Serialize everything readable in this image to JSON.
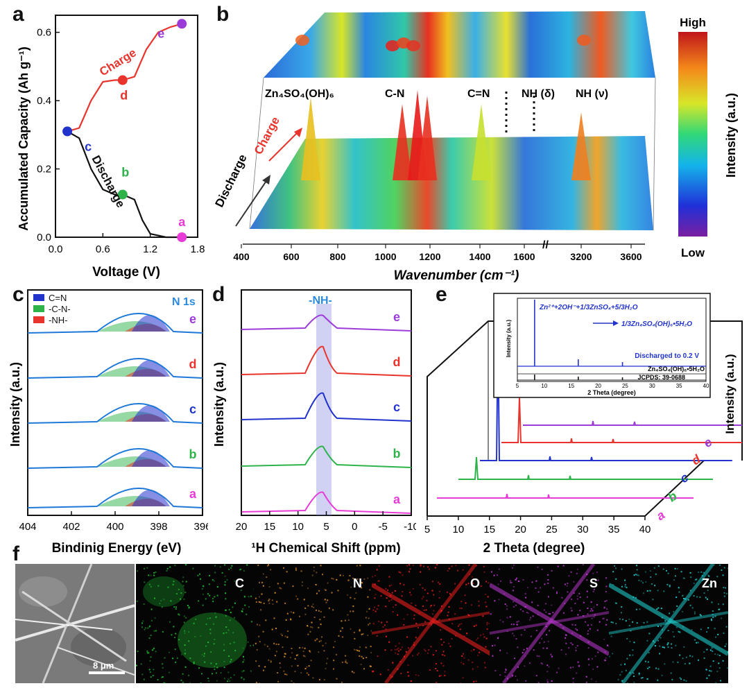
{
  "panels": {
    "a": "a",
    "b": "b",
    "c": "c",
    "d": "d",
    "e": "e",
    "f": "f"
  },
  "chart_data": [
    {
      "type": "line",
      "panel": "a",
      "xlabel": "Voltage (V)",
      "ylabel": "Accumulated Capacity (Ah g⁻¹)",
      "xlim": [
        0.0,
        1.8
      ],
      "ylim": [
        0.0,
        0.65
      ],
      "xticks": [
        "0.0",
        "0.6",
        "1.2",
        "1.8"
      ],
      "yticks": [
        "0.0",
        "0.2",
        "0.4",
        "0.6"
      ],
      "series": [
        {
          "name": "Charge",
          "color": "#e8342c",
          "x": [
            0.15,
            0.3,
            0.45,
            0.6,
            0.75,
            0.85,
            1.0,
            1.15,
            1.3,
            1.45,
            1.6
          ],
          "y": [
            0.31,
            0.32,
            0.4,
            0.455,
            0.46,
            0.46,
            0.47,
            0.55,
            0.6,
            0.615,
            0.625
          ]
        },
        {
          "name": "Discharge",
          "color": "#111111",
          "x": [
            0.15,
            0.3,
            0.45,
            0.6,
            0.75,
            0.85,
            1.0,
            1.1,
            1.2,
            1.4,
            1.6
          ],
          "y": [
            0.31,
            0.29,
            0.2,
            0.14,
            0.125,
            0.125,
            0.11,
            0.05,
            0.01,
            0.0,
            0.0
          ]
        }
      ],
      "points": [
        {
          "label": "a",
          "x": 1.6,
          "y": 0.0,
          "color": "#e83ad6"
        },
        {
          "label": "b",
          "x": 0.85,
          "y": 0.125,
          "color": "#2db34a"
        },
        {
          "label": "c",
          "x": 0.15,
          "y": 0.31,
          "color": "#2233cc"
        },
        {
          "label": "d",
          "x": 0.85,
          "y": 0.46,
          "color": "#e8342c"
        },
        {
          "label": "e",
          "x": 1.6,
          "y": 0.625,
          "color": "#9b3bd8"
        }
      ]
    },
    {
      "type": "heatmap",
      "panel": "b",
      "xlabel": "Wavenumber (cm⁻¹)",
      "xticks": [
        "400",
        "600",
        "800",
        "1000",
        "1200",
        "1400",
        "1600",
        "3200",
        "3600"
      ],
      "axis_labels": [
        "Discharge",
        "Charge"
      ],
      "peak_labels": [
        "Zn₄SO₄(OH)₆",
        "C-N",
        "C=N",
        "NH (δ)",
        "NH (ν)"
      ],
      "colorbar": {
        "title": "Intensity (a.u.)",
        "high": "High",
        "low": "Low"
      }
    },
    {
      "type": "line",
      "panel": "c",
      "xlabel": "Bindinig Energy (eV)",
      "ylabel": "Intensity (a.u.)",
      "xticks": [
        "404",
        "402",
        "400",
        "398",
        "396"
      ],
      "legend": [
        {
          "label": "C=N",
          "color": "#2233cc"
        },
        {
          "label": "-C-N-",
          "color": "#2db34a"
        },
        {
          "label": "-NH-",
          "color": "#e8342c"
        }
      ],
      "title_label": "N 1s",
      "curve_labels": [
        {
          "label": "e",
          "color": "#9b3bd8"
        },
        {
          "label": "d",
          "color": "#e8342c"
        },
        {
          "label": "c",
          "color": "#2233cc"
        },
        {
          "label": "b",
          "color": "#2db34a"
        },
        {
          "label": "a",
          "color": "#e83ad6"
        }
      ]
    },
    {
      "type": "line",
      "panel": "d",
      "xlabel": "¹H Chemical Shift (ppm)",
      "ylabel": "Intensity (a.u.)",
      "xticks": [
        "20",
        "15",
        "10",
        "5",
        "0",
        "-5",
        "-10"
      ],
      "band_label": "-NH-",
      "curve_labels": [
        {
          "label": "e",
          "color": "#9b3bd8"
        },
        {
          "label": "d",
          "color": "#e8342c"
        },
        {
          "label": "c",
          "color": "#2233cc"
        },
        {
          "label": "b",
          "color": "#2db34a"
        },
        {
          "label": "a",
          "color": "#e83ad6"
        }
      ]
    },
    {
      "type": "line",
      "panel": "e",
      "xlabel": "2 Theta (degree)",
      "ylabel": "Intensity (a.u.)",
      "xticks": [
        "5",
        "10",
        "15",
        "20",
        "25",
        "30",
        "35",
        "40"
      ],
      "curve_labels": [
        {
          "label": "a",
          "color": "#e83ad6"
        },
        {
          "label": "b",
          "color": "#2db34a"
        },
        {
          "label": "c",
          "color": "#2233cc"
        },
        {
          "label": "d",
          "color": "#e8342c"
        },
        {
          "label": "e",
          "color": "#9b3bd8"
        }
      ],
      "inset": {
        "ylabel": "Intensity (a.u.)",
        "xlabel": "2 Theta (degree)",
        "xticks": [
          "5",
          "10",
          "15",
          "20",
          "25",
          "30",
          "35",
          "40"
        ],
        "eq1": "Zn²⁺+2OH⁻+1/3ZnSO₄+5/3H₂O",
        "eq2": "1/3Zn₄SO₄(OH)₆•5H₂O",
        "note": "Discharged to 0.2 V",
        "ref1": "Zn₄SO₄(OH)₆•5H₂O",
        "ref2": "JCPDS: 39-0688"
      }
    }
  ],
  "eds": {
    "scale_bar": "8 μm",
    "maps": [
      {
        "label": "C",
        "color": "#22c435"
      },
      {
        "label": "N",
        "color": "#e0902a"
      },
      {
        "label": "O",
        "color": "#ff2020"
      },
      {
        "label": "S",
        "color": "#c23ad8"
      },
      {
        "label": "Zn",
        "color": "#22d8d8"
      }
    ]
  }
}
